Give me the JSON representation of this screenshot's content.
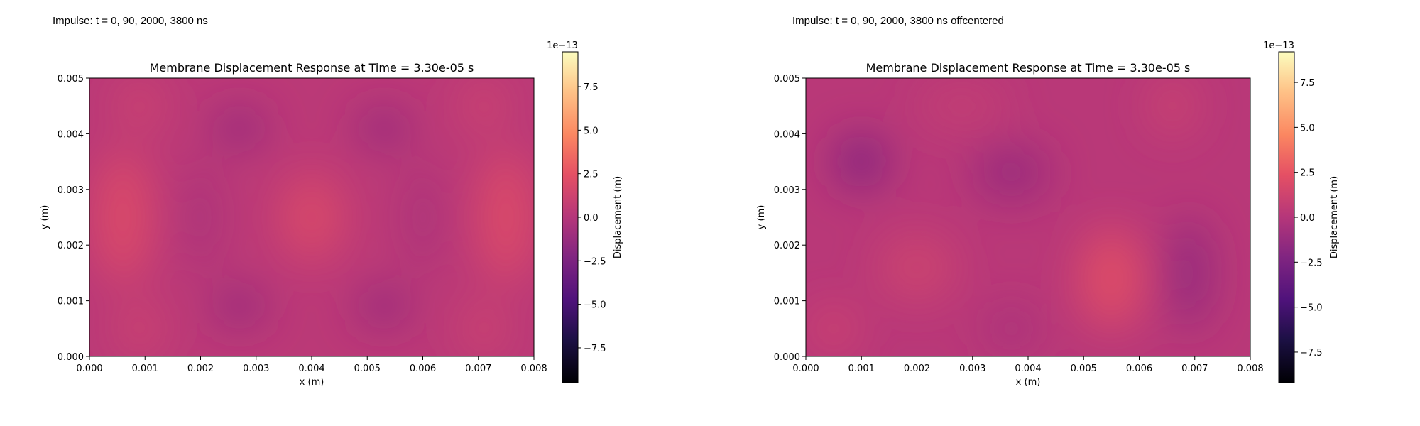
{
  "captions": [
    "Impulse: t = 0, 90, 2000, 3800 ns",
    "Impulse: t = 0, 90, 2000, 3800 ns offcentered"
  ],
  "chart_data": [
    {
      "type": "heatmap",
      "title": "Membrane Displacement Response at Time = 3.30e-05 s",
      "xlabel": "x (m)",
      "ylabel": "y (m)",
      "xlim": [
        0,
        0.008
      ],
      "ylim": [
        0,
        0.005
      ],
      "x_ticks": [
        "0.000",
        "0.001",
        "0.002",
        "0.003",
        "0.004",
        "0.005",
        "0.006",
        "0.007",
        "0.008"
      ],
      "y_ticks": [
        "0.000",
        "0.001",
        "0.002",
        "0.003",
        "0.004",
        "0.005"
      ],
      "colormap": "magma",
      "colorbar": {
        "label": "Displacement (m)",
        "scale_label": "1e−13",
        "range": [
          -9.5,
          9.5
        ],
        "ticks": [
          "7.5",
          "5.0",
          "2.5",
          "0.0",
          "−2.5",
          "−5.0",
          "−7.5"
        ],
        "tick_values": [
          7.5,
          5.0,
          2.5,
          0.0,
          -2.5,
          -5.0,
          -7.5
        ]
      },
      "background_value": 0.3,
      "features": [
        {
          "x": 0.0006,
          "y": 0.0025,
          "sx": 0.0005,
          "sy": 0.0012,
          "amp": 1.9
        },
        {
          "x": 0.0075,
          "y": 0.0025,
          "sx": 0.0005,
          "sy": 0.0012,
          "amp": 1.9
        },
        {
          "x": 0.004,
          "y": 0.0025,
          "sx": 0.0006,
          "sy": 0.0008,
          "amp": 1.6
        },
        {
          "x": 0.0009,
          "y": 0.0045,
          "sx": 0.0004,
          "sy": 0.0005,
          "amp": 1.0
        },
        {
          "x": 0.0071,
          "y": 0.0045,
          "sx": 0.0004,
          "sy": 0.0005,
          "amp": 1.0
        },
        {
          "x": 0.0009,
          "y": 0.0005,
          "sx": 0.0004,
          "sy": 0.0005,
          "amp": 1.0
        },
        {
          "x": 0.0071,
          "y": 0.0005,
          "sx": 0.0004,
          "sy": 0.0005,
          "amp": 1.0
        },
        {
          "x": 0.0027,
          "y": 0.0041,
          "sx": 0.0005,
          "sy": 0.00035,
          "amp": -2.0
        },
        {
          "x": 0.0053,
          "y": 0.0041,
          "sx": 0.0005,
          "sy": 0.00035,
          "amp": -2.0
        },
        {
          "x": 0.0027,
          "y": 0.0009,
          "sx": 0.0005,
          "sy": 0.00035,
          "amp": -2.0
        },
        {
          "x": 0.0053,
          "y": 0.0009,
          "sx": 0.0005,
          "sy": 0.00035,
          "amp": -2.0
        },
        {
          "x": 0.002,
          "y": 0.0025,
          "sx": 0.0003,
          "sy": 0.001,
          "amp": -0.9
        },
        {
          "x": 0.006,
          "y": 0.0025,
          "sx": 0.0003,
          "sy": 0.001,
          "amp": -0.9
        }
      ]
    },
    {
      "type": "heatmap",
      "title": "Membrane Displacement Response at Time = 3.30e-05 s",
      "xlabel": "x (m)",
      "ylabel": "y (m)",
      "xlim": [
        0,
        0.008
      ],
      "ylim": [
        0,
        0.005
      ],
      "x_ticks": [
        "0.000",
        "0.001",
        "0.002",
        "0.003",
        "0.004",
        "0.005",
        "0.006",
        "0.007",
        "0.008"
      ],
      "y_ticks": [
        "0.000",
        "0.001",
        "0.002",
        "0.003",
        "0.004",
        "0.005"
      ],
      "colormap": "magma",
      "colorbar": {
        "label": "Displacement (m)",
        "scale_label": "1e−13",
        "range": [
          -9.2,
          9.2
        ],
        "ticks": [
          "7.5",
          "5.0",
          "2.5",
          "0.0",
          "−2.5",
          "−5.0",
          "−7.5"
        ],
        "tick_values": [
          7.5,
          5.0,
          2.5,
          0.0,
          -2.5,
          -5.0,
          -7.5
        ]
      },
      "background_value": 0.2,
      "features": [
        {
          "x": 0.001,
          "y": 0.0035,
          "sx": 0.0005,
          "sy": 0.0005,
          "amp": -2.6
        },
        {
          "x": 0.0037,
          "y": 0.0033,
          "sx": 0.0007,
          "sy": 0.0005,
          "amp": -1.6
        },
        {
          "x": 0.0069,
          "y": 0.0015,
          "sx": 0.0004,
          "sy": 0.001,
          "amp": -1.9
        },
        {
          "x": 0.0055,
          "y": 0.0014,
          "sx": 0.0006,
          "sy": 0.0009,
          "amp": 2.0
        },
        {
          "x": 0.002,
          "y": 0.0016,
          "sx": 0.0007,
          "sy": 0.0006,
          "amp": 1.0
        },
        {
          "x": 0.0005,
          "y": 0.0005,
          "sx": 0.0004,
          "sy": 0.0004,
          "amp": 1.3
        },
        {
          "x": 0.0066,
          "y": 0.0045,
          "sx": 0.0004,
          "sy": 0.0005,
          "amp": 1.0
        },
        {
          "x": 0.0028,
          "y": 0.0045,
          "sx": 0.0008,
          "sy": 0.0004,
          "amp": 0.5
        },
        {
          "x": 0.0037,
          "y": 0.0005,
          "sx": 0.0005,
          "sy": 0.0004,
          "amp": -0.8
        }
      ]
    }
  ]
}
